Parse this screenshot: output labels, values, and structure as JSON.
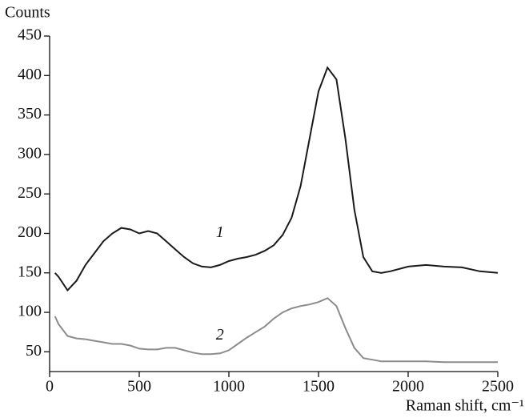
{
  "chart_data": {
    "type": "line",
    "y_label": "Counts",
    "x_label": "Raman shift, cm⁻¹",
    "annotations": [
      "1",
      "2"
    ],
    "x": [
      30,
      50,
      100,
      150,
      200,
      250,
      300,
      350,
      400,
      450,
      500,
      550,
      600,
      650,
      700,
      750,
      800,
      850,
      900,
      950,
      1000,
      1050,
      1100,
      1150,
      1200,
      1250,
      1300,
      1350,
      1400,
      1450,
      1500,
      1550,
      1600,
      1650,
      1700,
      1750,
      1800,
      1850,
      1900,
      2000,
      2100,
      2200,
      2300,
      2400,
      2500
    ],
    "series": [
      {
        "name": "1",
        "color": "#1a1a1a",
        "values": [
          150,
          145,
          128,
          140,
          160,
          175,
          190,
          200,
          207,
          205,
          200,
          203,
          200,
          190,
          180,
          170,
          162,
          158,
          157,
          160,
          165,
          168,
          170,
          173,
          178,
          185,
          198,
          220,
          260,
          320,
          380,
          410,
          395,
          320,
          230,
          170,
          152,
          150,
          152,
          158,
          160,
          158,
          157,
          152,
          150
        ]
      },
      {
        "name": "2",
        "color": "#8c8c8c",
        "values": [
          95,
          85,
          70,
          67,
          66,
          64,
          62,
          60,
          60,
          58,
          54,
          53,
          53,
          55,
          55,
          52,
          49,
          47,
          47,
          48,
          52,
          60,
          68,
          75,
          82,
          92,
          100,
          105,
          108,
          110,
          113,
          118,
          108,
          80,
          55,
          42,
          40,
          38,
          38,
          38,
          38,
          37,
          37,
          37,
          37
        ]
      }
    ],
    "xlim": [
      0,
      2500
    ],
    "xticks": [
      0,
      500,
      1000,
      1500,
      2000,
      2500
    ],
    "ylim": [
      25,
      450
    ],
    "yticks": [
      50,
      100,
      150,
      200,
      250,
      300,
      350,
      400,
      450
    ]
  }
}
